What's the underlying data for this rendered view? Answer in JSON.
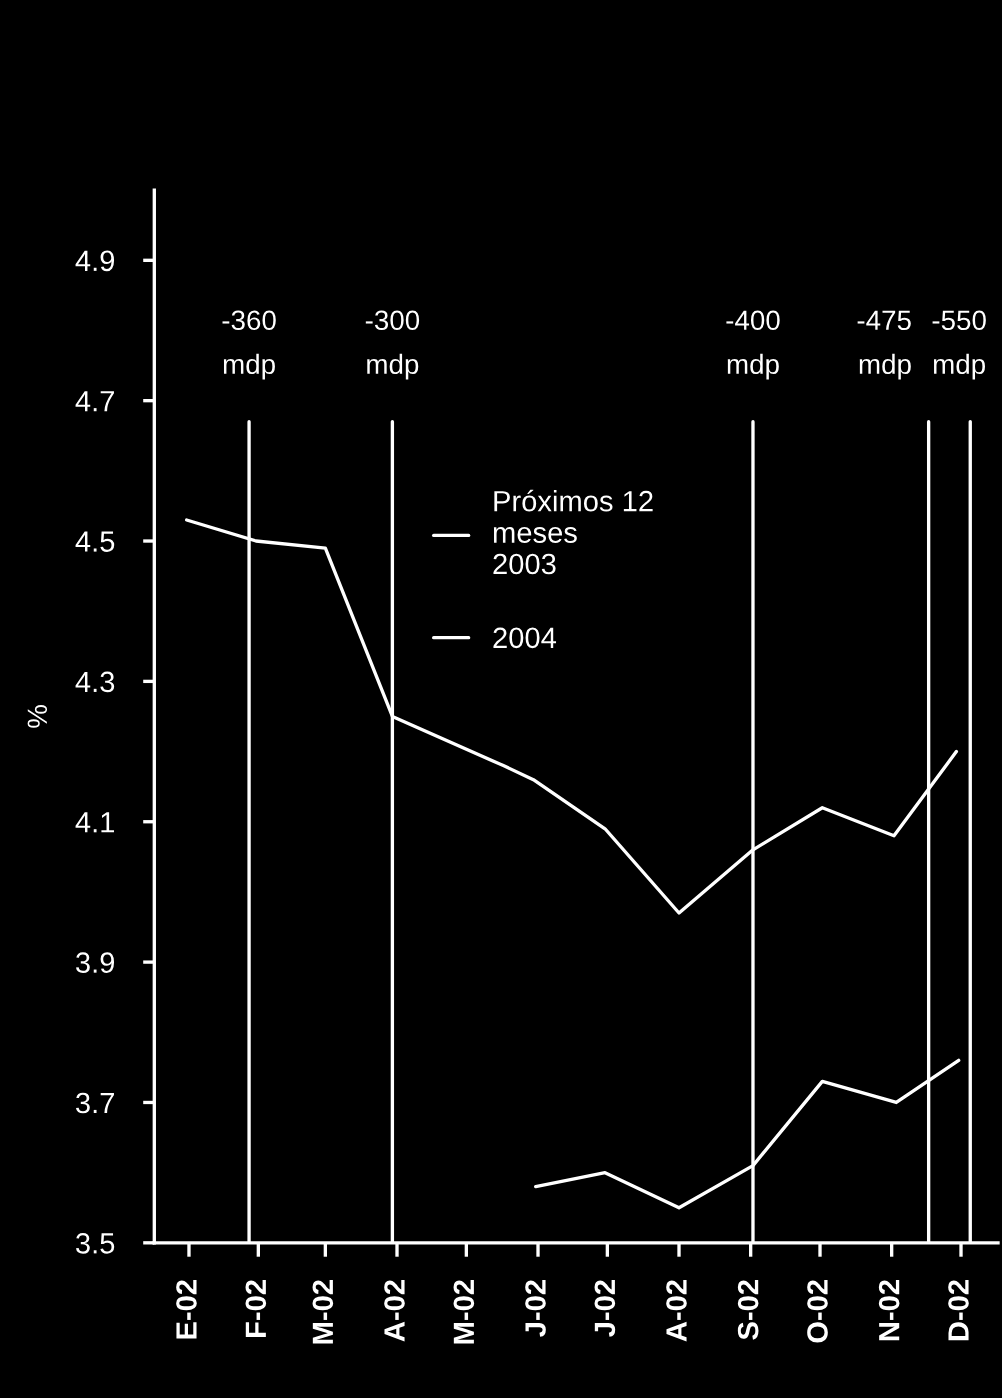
{
  "chart_data": {
    "type": "line",
    "ylabel": "%",
    "xlim": [
      "2002-01-01",
      "2003-01-01"
    ],
    "xticks": [
      {
        "value": "2002-01-16",
        "label": "E-02"
      },
      {
        "value": "2002-02-15",
        "label": "F-02"
      },
      {
        "value": "2002-03-16",
        "label": "M-02"
      },
      {
        "value": "2002-04-16",
        "label": "A-02"
      },
      {
        "value": "2002-05-16",
        "label": "M-02"
      },
      {
        "value": "2002-06-16",
        "label": "J-02"
      },
      {
        "value": "2002-07-16",
        "label": "J-02"
      },
      {
        "value": "2002-08-16",
        "label": "A-02"
      },
      {
        "value": "2002-09-16",
        "label": "S-02"
      },
      {
        "value": "2002-10-16",
        "label": "O-02"
      },
      {
        "value": "2002-11-16",
        "label": "N-02"
      },
      {
        "value": "2002-12-16",
        "label": "D-02"
      }
    ],
    "ylim": [
      3.5,
      5.0
    ],
    "yticks": [
      3.5,
      3.7,
      3.9,
      4.1,
      4.3,
      4.5,
      4.7,
      4.9
    ],
    "grid": false,
    "legend": "top",
    "marker": "none",
    "line_style": "solid",
    "series": [
      {
        "name": "Próximos 12\nmeses\n2003",
        "color": "#ffffff",
        "x": [
          "2002-01-15",
          "2002-02-14",
          "2002-03-16",
          "2002-04-14",
          "2002-06-01",
          "2002-06-14",
          "2002-07-15",
          "2002-08-16",
          "2002-09-17",
          "2002-10-17",
          "2002-11-17",
          "2002-12-14"
        ],
        "values": [
          4.53,
          4.5,
          4.49,
          4.25,
          4.18,
          4.16,
          4.09,
          3.97,
          4.06,
          4.12,
          4.08,
          4.2
        ]
      },
      {
        "name": "2004",
        "color": "#ffffff",
        "x": [
          "2002-06-15",
          "2002-07-15",
          "2002-08-16",
          "2002-09-17",
          "2002-10-17",
          "2002-11-18",
          "2002-12-15"
        ],
        "values": [
          3.58,
          3.6,
          3.55,
          3.61,
          3.73,
          3.7,
          3.76
        ]
      }
    ],
    "ref_lines": [
      {
        "axis": "x",
        "value": "2002-02-11",
        "label": "-360\nmdp",
        "color": "#ffffff"
      },
      {
        "axis": "x",
        "value": "2002-04-14",
        "label": "-300\nmdp",
        "color": "#ffffff"
      },
      {
        "axis": "x",
        "value": "2002-09-17",
        "label": "-400\nmdp",
        "color": "#ffffff"
      },
      {
        "axis": "x",
        "value": "2002-12-02",
        "label": "-475\nmdp",
        "color": "#ffffff"
      },
      {
        "axis": "x",
        "value": "2002-12-20",
        "label": "-550\nmdp",
        "color": "#ffffff"
      }
    ]
  }
}
